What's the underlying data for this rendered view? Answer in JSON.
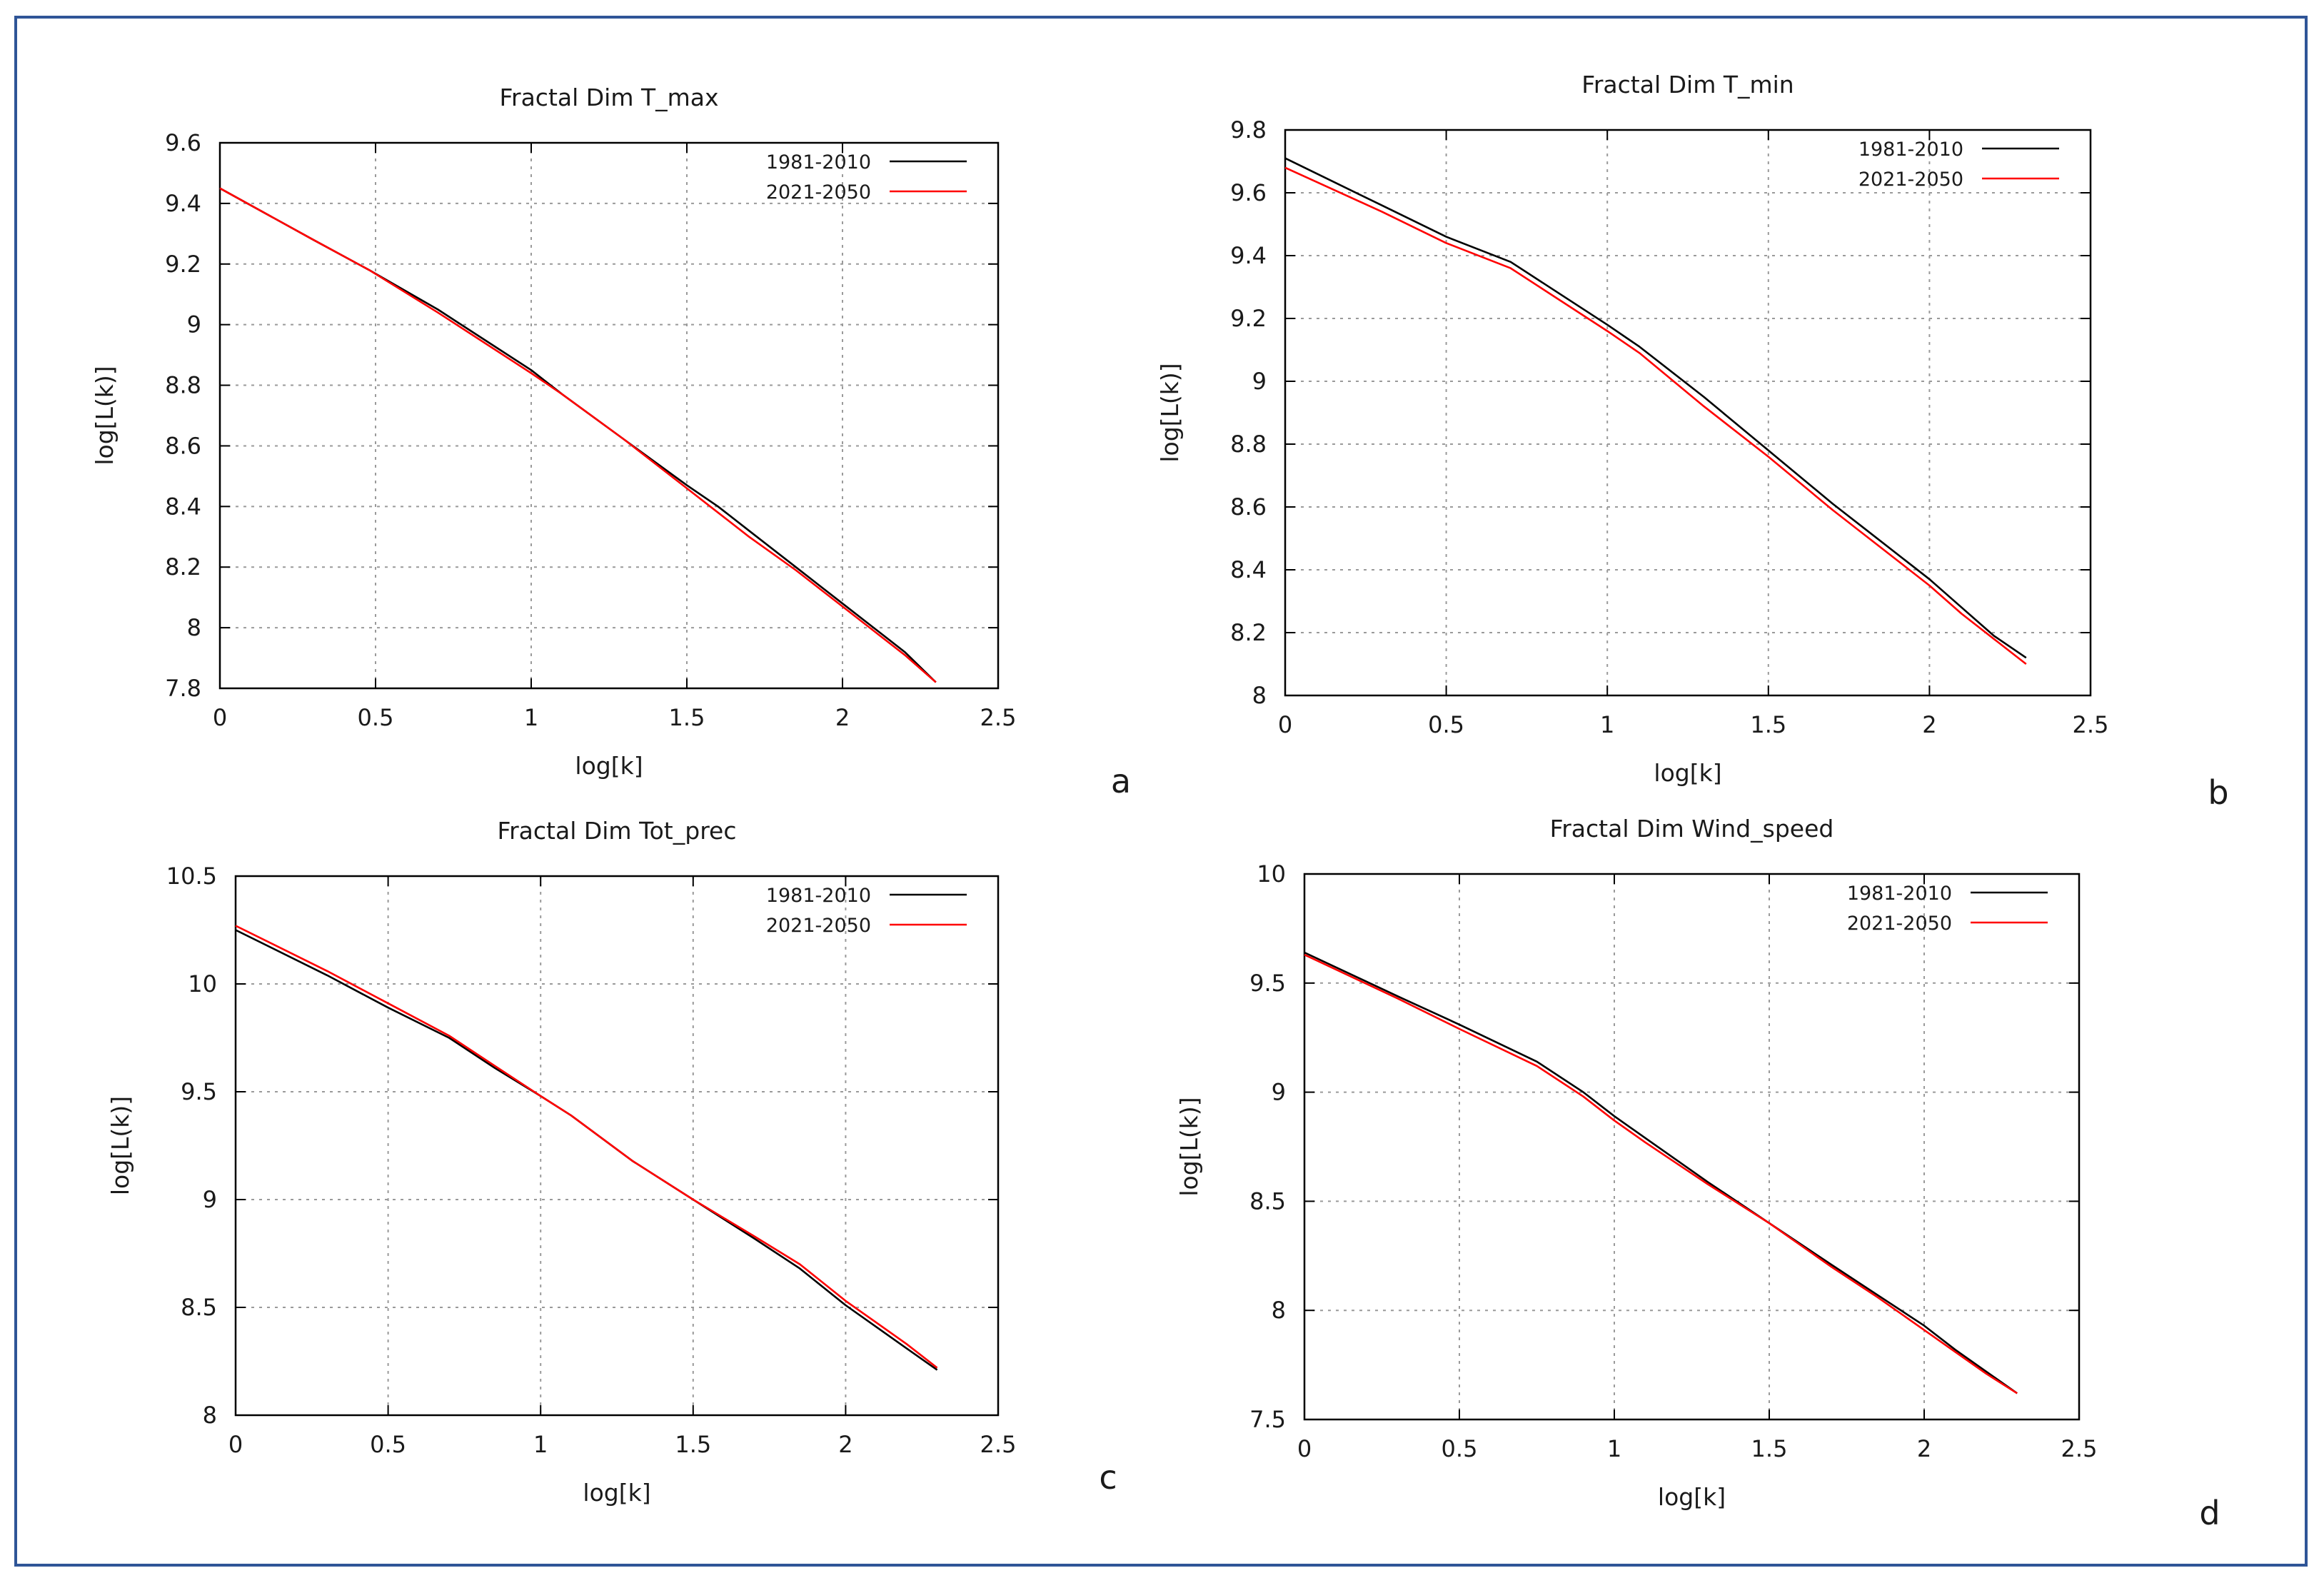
{
  "colors": {
    "frame": "#2f5597",
    "grid": "#9a9a9a",
    "axis": "#000000",
    "series_1981": "#000000",
    "series_2021": "#ff0000"
  },
  "chart_data": [
    {
      "type": "line",
      "panel_letter": "a",
      "title": "Fractal Dim T_max",
      "xlabel": "log[k]",
      "ylabel": "log[L(k)]",
      "xlim": [
        0,
        2.5
      ],
      "ylim": [
        7.8,
        9.6
      ],
      "xticks": [
        "0",
        "0.5",
        "1",
        "1.5",
        "2",
        "2.5"
      ],
      "yticks": [
        "7.8",
        "8",
        "8.2",
        "8.4",
        "8.6",
        "8.8",
        "9",
        "9.2",
        "9.4",
        "9.6"
      ],
      "grid": true,
      "legend_position": "top-right",
      "series": [
        {
          "name": "1981-2010",
          "color": "#000000",
          "x": [
            0,
            0.3,
            0.48,
            0.7,
            0.85,
            1.0,
            1.1,
            1.3,
            1.5,
            1.6,
            1.7,
            1.85,
            2.0,
            2.1,
            2.2,
            2.3
          ],
          "y": [
            9.45,
            9.28,
            9.18,
            9.05,
            8.95,
            8.85,
            8.77,
            8.62,
            8.47,
            8.4,
            8.32,
            8.2,
            8.08,
            8.0,
            7.92,
            7.82
          ]
        },
        {
          "name": "2021-2050",
          "color": "#ff0000",
          "x": [
            0,
            0.3,
            0.48,
            0.7,
            0.85,
            1.0,
            1.1,
            1.3,
            1.5,
            1.6,
            1.7,
            1.85,
            2.0,
            2.1,
            2.2,
            2.3
          ],
          "y": [
            9.45,
            9.28,
            9.18,
            9.04,
            8.94,
            8.84,
            8.77,
            8.62,
            8.46,
            8.38,
            8.3,
            8.19,
            8.07,
            7.99,
            7.91,
            7.82
          ]
        }
      ]
    },
    {
      "type": "line",
      "panel_letter": "b",
      "title": "Fractal Dim T_min",
      "xlabel": "log[k]",
      "ylabel": "log[L(k)]",
      "xlim": [
        0,
        2.5
      ],
      "ylim": [
        8,
        9.8
      ],
      "xticks": [
        "0",
        "0.5",
        "1",
        "1.5",
        "2",
        "2.5"
      ],
      "yticks": [
        "8",
        "8.2",
        "8.4",
        "8.6",
        "8.8",
        "9",
        "9.2",
        "9.4",
        "9.6",
        "9.8"
      ],
      "grid": true,
      "legend_position": "top-right",
      "series": [
        {
          "name": "1981-2010",
          "color": "#000000",
          "x": [
            0,
            0.3,
            0.5,
            0.7,
            0.85,
            1.0,
            1.1,
            1.3,
            1.5,
            1.7,
            1.8,
            2.0,
            2.1,
            2.2,
            2.3
          ],
          "y": [
            9.71,
            9.56,
            9.46,
            9.38,
            9.28,
            9.18,
            9.11,
            8.95,
            8.78,
            8.61,
            8.53,
            8.37,
            8.28,
            8.19,
            8.12
          ]
        },
        {
          "name": "2021-2050",
          "color": "#ff0000",
          "x": [
            0,
            0.3,
            0.5,
            0.7,
            0.85,
            1.0,
            1.1,
            1.3,
            1.5,
            1.7,
            1.8,
            2.0,
            2.1,
            2.2,
            2.3
          ],
          "y": [
            9.68,
            9.54,
            9.44,
            9.36,
            9.26,
            9.16,
            9.09,
            8.92,
            8.76,
            8.59,
            8.51,
            8.35,
            8.26,
            8.18,
            8.1
          ]
        }
      ]
    },
    {
      "type": "line",
      "panel_letter": "c",
      "title": "Fractal Dim Tot_prec",
      "xlabel": "log[k]",
      "ylabel": "log[L(k)]",
      "xlim": [
        0,
        2.5
      ],
      "ylim": [
        8,
        10.5
      ],
      "xticks": [
        "0",
        "0.5",
        "1",
        "1.5",
        "2",
        "2.5"
      ],
      "yticks": [
        "8",
        "8.5",
        "9",
        "9.5",
        "10",
        "10.5"
      ],
      "grid": true,
      "legend_position": "top-right",
      "series": [
        {
          "name": "1981-2010",
          "color": "#000000",
          "x": [
            0,
            0.3,
            0.5,
            0.7,
            0.85,
            1.0,
            1.1,
            1.3,
            1.5,
            1.7,
            1.85,
            2.0,
            2.1,
            2.2,
            2.3
          ],
          "y": [
            10.25,
            10.04,
            9.89,
            9.75,
            9.61,
            9.48,
            9.39,
            9.18,
            9.0,
            8.82,
            8.68,
            8.51,
            8.41,
            8.31,
            8.21
          ]
        },
        {
          "name": "2021-2050",
          "color": "#ff0000",
          "x": [
            0,
            0.3,
            0.5,
            0.7,
            0.85,
            1.0,
            1.1,
            1.3,
            1.5,
            1.7,
            1.85,
            2.0,
            2.1,
            2.2,
            2.3
          ],
          "y": [
            10.27,
            10.06,
            9.91,
            9.76,
            9.62,
            9.48,
            9.39,
            9.18,
            9.0,
            8.83,
            8.7,
            8.53,
            8.43,
            8.33,
            8.22
          ]
        }
      ]
    },
    {
      "type": "line",
      "panel_letter": "d",
      "title": "Fractal Dim Wind_speed",
      "xlabel": "log[k]",
      "ylabel": "log[L(k)]",
      "xlim": [
        0,
        2.5
      ],
      "ylim": [
        7.5,
        10
      ],
      "xticks": [
        "0",
        "0.5",
        "1",
        "1.5",
        "2",
        "2.5"
      ],
      "yticks": [
        "7.5",
        "8",
        "8.5",
        "9",
        "9.5",
        "10"
      ],
      "grid": true,
      "legend_position": "top-right",
      "series": [
        {
          "name": "1981-2010",
          "color": "#000000",
          "x": [
            0,
            0.3,
            0.5,
            0.75,
            0.9,
            1.0,
            1.1,
            1.3,
            1.5,
            1.7,
            1.85,
            2.0,
            2.1,
            2.2,
            2.3
          ],
          "y": [
            9.64,
            9.44,
            9.31,
            9.14,
            9.0,
            8.89,
            8.79,
            8.59,
            8.4,
            8.21,
            8.07,
            7.93,
            7.82,
            7.72,
            7.62
          ]
        },
        {
          "name": "2021-2050",
          "color": "#ff0000",
          "x": [
            0,
            0.3,
            0.5,
            0.75,
            0.9,
            1.0,
            1.1,
            1.3,
            1.5,
            1.7,
            1.85,
            2.0,
            2.1,
            2.2,
            2.3
          ],
          "y": [
            9.63,
            9.43,
            9.29,
            9.12,
            8.98,
            8.87,
            8.77,
            8.58,
            8.4,
            8.2,
            8.06,
            7.91,
            7.81,
            7.71,
            7.62
          ]
        }
      ]
    }
  ]
}
